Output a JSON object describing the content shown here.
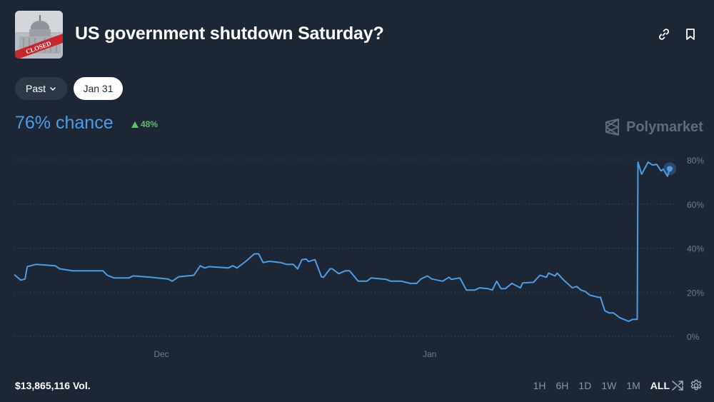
{
  "header": {
    "title": "US government shutdown Saturday?",
    "thumbnail_text": "CLOSED",
    "icons": [
      "link-icon",
      "bookmark-icon"
    ]
  },
  "filters": {
    "past_label": "Past",
    "selected_date": "Jan 31"
  },
  "summary": {
    "chance": "76% chance",
    "change": "48%",
    "change_direction": "up"
  },
  "brand": "Polymarket",
  "footer": {
    "volume": "$13,865,116 Vol.",
    "ranges": [
      "1H",
      "6H",
      "1D",
      "1W",
      "1M",
      "ALL"
    ],
    "active_range": "ALL"
  },
  "colors": {
    "background": "#1d2634",
    "line": "#4d9ce6",
    "up": "#5fbf6b"
  },
  "chart_data": {
    "type": "line",
    "x_tick_labels": [
      "Dec",
      "Jan"
    ],
    "x_ticks": [
      "2025-12-01T00:00",
      "2026-01-01T00:00"
    ],
    "y_tick_labels": [
      "0%",
      "20%",
      "40%",
      "60%",
      "80%"
    ],
    "y_ticks": [
      0,
      20,
      40,
      60,
      80
    ],
    "xlim": [
      "2025-11-14T00:00",
      "2026-01-29T00:00"
    ],
    "ylim": [
      0,
      80
    ],
    "grid": true,
    "unit": "%",
    "series": [
      {
        "points": [
          [
            "2025-11-14T00:00",
            28
          ],
          [
            "2025-11-14T18:00",
            25.5
          ],
          [
            "2025-11-15T06:00",
            26
          ],
          [
            "2025-11-15T12:00",
            31.6
          ],
          [
            "2025-11-16T12:00",
            32.6
          ],
          [
            "2025-11-18T18:00",
            32
          ],
          [
            "2025-11-19T06:00",
            30.6
          ],
          [
            "2025-11-20T18:00",
            29.7
          ],
          [
            "2025-11-24T06:00",
            29.7
          ],
          [
            "2025-11-24T18:00",
            27.7
          ],
          [
            "2025-11-25T12:00",
            26.5
          ],
          [
            "2025-11-27T06:00",
            26.5
          ],
          [
            "2025-11-27T18:00",
            27.4
          ],
          [
            "2025-11-29T18:00",
            26.8
          ],
          [
            "2025-12-01T18:00",
            26
          ],
          [
            "2025-12-02T06:00",
            25
          ],
          [
            "2025-12-03T00:00",
            27
          ],
          [
            "2025-12-04T18:00",
            27.7
          ],
          [
            "2025-12-05T12:00",
            32
          ],
          [
            "2025-12-06T00:00",
            31
          ],
          [
            "2025-12-06T12:00",
            31.6
          ],
          [
            "2025-12-08T18:00",
            31
          ],
          [
            "2025-12-09T06:00",
            32
          ],
          [
            "2025-12-09T18:00",
            31
          ],
          [
            "2025-12-10T18:00",
            34
          ],
          [
            "2025-12-11T18:00",
            37.4
          ],
          [
            "2025-12-12T06:00",
            37.4
          ],
          [
            "2025-12-12T18:00",
            33.5
          ],
          [
            "2025-12-13T12:00",
            34
          ],
          [
            "2025-12-14T18:00",
            33.5
          ],
          [
            "2025-12-15T12:00",
            32.6
          ],
          [
            "2025-12-16T06:00",
            32.6
          ],
          [
            "2025-12-16T18:00",
            30.6
          ],
          [
            "2025-12-17T06:00",
            34.8
          ],
          [
            "2025-12-17T18:00",
            35
          ],
          [
            "2025-12-18T00:00",
            33.9
          ],
          [
            "2025-12-18T18:00",
            34.8
          ],
          [
            "2025-12-19T12:00",
            27
          ],
          [
            "2025-12-19T18:00",
            26.8
          ],
          [
            "2025-12-20T12:00",
            30.6
          ],
          [
            "2025-12-20T18:00",
            30.6
          ],
          [
            "2025-12-21T12:00",
            28.4
          ],
          [
            "2025-12-22T06:00",
            29.7
          ],
          [
            "2025-12-22T18:00",
            29.7
          ],
          [
            "2025-12-23T18:00",
            25
          ],
          [
            "2025-12-24T18:00",
            25
          ],
          [
            "2025-12-25T06:00",
            26.5
          ],
          [
            "2025-12-27T00:00",
            25.8
          ],
          [
            "2025-12-27T12:00",
            25
          ],
          [
            "2025-12-28T18:00",
            25
          ],
          [
            "2025-12-29T18:00",
            24
          ],
          [
            "2025-12-30T12:00",
            24
          ],
          [
            "2025-12-31T00:00",
            26
          ],
          [
            "2025-12-31T18:00",
            27.4
          ],
          [
            "2026-01-01T06:00",
            26
          ],
          [
            "2026-01-02T12:00",
            25
          ],
          [
            "2026-01-03T06:00",
            26.8
          ],
          [
            "2026-01-03T12:00",
            25.8
          ],
          [
            "2026-01-04T12:00",
            26.5
          ],
          [
            "2026-01-05T06:00",
            21
          ],
          [
            "2026-01-06T06:00",
            21
          ],
          [
            "2026-01-06T18:00",
            22
          ],
          [
            "2026-01-07T18:00",
            21.6
          ],
          [
            "2026-01-08T06:00",
            21
          ],
          [
            "2026-01-08T18:00",
            25
          ],
          [
            "2026-01-09T06:00",
            21.6
          ],
          [
            "2026-01-09T18:00",
            21.6
          ],
          [
            "2026-01-10T12:00",
            24
          ],
          [
            "2026-01-11T12:00",
            22
          ],
          [
            "2026-01-11T18:00",
            24.2
          ],
          [
            "2026-01-13T00:00",
            24.5
          ],
          [
            "2026-01-13T18:00",
            27.7
          ],
          [
            "2026-01-14T12:00",
            26.8
          ],
          [
            "2026-01-14T18:00",
            28.7
          ],
          [
            "2026-01-15T12:00",
            27.4
          ],
          [
            "2026-01-15T18:00",
            28.7
          ],
          [
            "2026-01-16T12:00",
            25.5
          ],
          [
            "2026-01-17T12:00",
            22
          ],
          [
            "2026-01-18T00:00",
            22.6
          ],
          [
            "2026-01-18T12:00",
            21
          ],
          [
            "2026-01-19T00:00",
            20.3
          ],
          [
            "2026-01-19T12:00",
            18.7
          ],
          [
            "2026-01-20T12:00",
            17.7
          ],
          [
            "2026-01-20T18:00",
            17.7
          ],
          [
            "2026-01-21T06:00",
            11.6
          ],
          [
            "2026-01-21T18:00",
            10.6
          ],
          [
            "2026-01-22T06:00",
            10.6
          ],
          [
            "2026-01-23T00:00",
            8.4
          ],
          [
            "2026-01-24T00:00",
            6.8
          ],
          [
            "2026-01-24T12:00",
            7.7
          ],
          [
            "2026-01-25T00:00",
            7.7
          ],
          [
            "2026-01-25T02:00",
            79
          ],
          [
            "2026-01-25T12:00",
            73.5
          ],
          [
            "2026-01-26T06:00",
            79
          ],
          [
            "2026-01-26T18:00",
            77.7
          ],
          [
            "2026-01-27T06:00",
            78
          ],
          [
            "2026-01-27T18:00",
            75
          ],
          [
            "2026-01-28T00:00",
            75.8
          ],
          [
            "2026-01-28T12:00",
            72.6
          ],
          [
            "2026-01-28T18:00",
            76
          ]
        ]
      }
    ]
  }
}
